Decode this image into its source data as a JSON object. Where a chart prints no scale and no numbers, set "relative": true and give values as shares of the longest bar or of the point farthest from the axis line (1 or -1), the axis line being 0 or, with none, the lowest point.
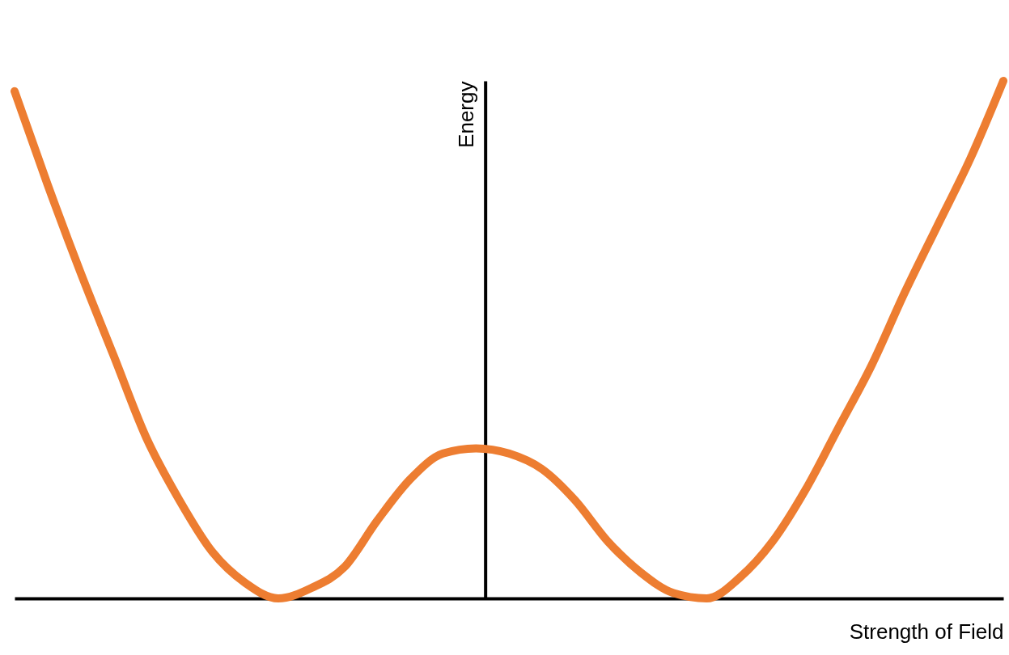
{
  "chart_data": {
    "type": "line",
    "relative": true,
    "xlabel": "Strength of Field",
    "ylabel": "Energy",
    "categories": [
      null,
      null,
      null,
      null,
      null,
      null,
      null,
      null,
      null,
      null,
      null,
      null,
      null,
      null,
      null,
      null,
      null,
      null,
      null,
      null,
      null,
      null,
      null,
      null,
      null,
      null,
      null,
      null,
      null,
      null,
      null
    ],
    "series": [
      {
        "color": "#ed7d31",
        "values": [
          0.98,
          0.8,
          0.63,
          0.47,
          0.31,
          0.19,
          0.09,
          0.03,
          0,
          0.02,
          0.06,
          0.15,
          0.23,
          0.28,
          0.29,
          0.28,
          0.25,
          0.19,
          0.11,
          0.05,
          0.01,
          0,
          0.04,
          0.11,
          0.21,
          0.33,
          0.45,
          0.59,
          0.72,
          0.85,
          1
        ]
      }
    ],
    "grid": false,
    "legend": false,
    "line_style": "solid"
  }
}
